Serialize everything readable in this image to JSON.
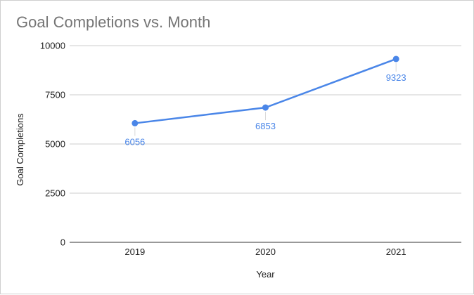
{
  "chart_data": {
    "type": "line",
    "title": "Goal Completions vs. Month",
    "xlabel": "Year",
    "ylabel": "Goal Completions",
    "categories": [
      "2019",
      "2020",
      "2021"
    ],
    "series": [
      {
        "values": [
          6056,
          6853,
          9323
        ],
        "color": "#4a86e8"
      }
    ],
    "ylim": [
      0,
      10000
    ],
    "yticks": [
      "0",
      "2500",
      "5000",
      "7500",
      "10000"
    ],
    "grid": true,
    "legend": "none"
  }
}
